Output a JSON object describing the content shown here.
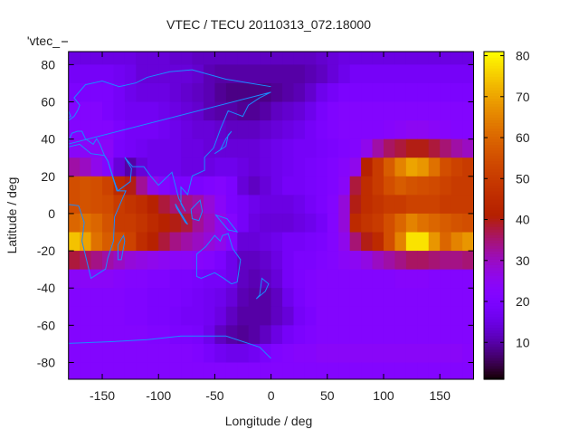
{
  "chart_data": {
    "type": "heatmap",
    "title": "VTEC / TECU 20110313_072.18000",
    "xlabel": "Longitude / deg",
    "ylabel": "Latitude / deg",
    "legend_entry": "'vtec_",
    "legend_placement": "top-left",
    "xlim": [
      -180,
      180
    ],
    "ylim": [
      -89,
      87
    ],
    "xticks": [
      -150,
      -100,
      -50,
      0,
      50,
      100,
      150
    ],
    "yticks": [
      -80,
      -60,
      -40,
      -20,
      0,
      20,
      40,
      60,
      80
    ],
    "colorbar": {
      "range": [
        1,
        81
      ],
      "ticks": [
        10,
        20,
        30,
        40,
        50,
        60,
        70,
        80
      ],
      "palette": "black-purple-red-orange-yellow"
    },
    "grid_lon_centers": [
      -175,
      -165,
      -155,
      -145,
      -135,
      -125,
      -115,
      -105,
      -95,
      -85,
      -75,
      -65,
      -55,
      -45,
      -35,
      -25,
      -15,
      -5,
      5,
      15,
      25,
      35,
      45,
      55,
      65,
      75,
      85,
      95,
      105,
      115,
      125,
      135,
      145,
      155,
      165,
      175
    ],
    "grid_lat_centers": [
      85,
      75,
      65,
      55,
      45,
      35,
      25,
      15,
      5,
      -5,
      -15,
      -25,
      -35,
      -45,
      -55,
      -65,
      -75,
      -85
    ],
    "values": [
      [
        15,
        15,
        15,
        15,
        15,
        15,
        14,
        14,
        14,
        13,
        13,
        12,
        12,
        12,
        12,
        12,
        12,
        12,
        12,
        12,
        12,
        12,
        13,
        14,
        15,
        15,
        15,
        15,
        15,
        15,
        15,
        15,
        15,
        15,
        15,
        15
      ],
      [
        18,
        18,
        18,
        18,
        17,
        16,
        14,
        14,
        14,
        14,
        14,
        13,
        11,
        10,
        10,
        10,
        10,
        10,
        10,
        10,
        10,
        11,
        12,
        14,
        16,
        18,
        18,
        18,
        18,
        18,
        18,
        18,
        18,
        18,
        18,
        18
      ],
      [
        20,
        20,
        20,
        20,
        18,
        16,
        15,
        15,
        15,
        14,
        13,
        12,
        11,
        9,
        8,
        8,
        8,
        8,
        9,
        10,
        11,
        13,
        16,
        18,
        20,
        20,
        20,
        20,
        20,
        20,
        20,
        20,
        20,
        20,
        20,
        20
      ],
      [
        22,
        22,
        22,
        20,
        18,
        17,
        17,
        17,
        16,
        15,
        14,
        13,
        11,
        10,
        10,
        9,
        9,
        10,
        12,
        13,
        14,
        16,
        19,
        21,
        22,
        22,
        22,
        22,
        22,
        22,
        22,
        22,
        22,
        22,
        22,
        22
      ],
      [
        22,
        22,
        22,
        22,
        20,
        18,
        18,
        18,
        17,
        16,
        15,
        14,
        14,
        13,
        12,
        12,
        12,
        13,
        14,
        15,
        16,
        18,
        20,
        21,
        22,
        22,
        22,
        22,
        23,
        24,
        25,
        25,
        24,
        23,
        22,
        22
      ],
      [
        24,
        24,
        24,
        24,
        19,
        18,
        17,
        16,
        16,
        16,
        15,
        15,
        14,
        14,
        14,
        14,
        14,
        15,
        16,
        17,
        18,
        18,
        19,
        20,
        21,
        22,
        26,
        32,
        36,
        38,
        40,
        40,
        38,
        35,
        32,
        30
      ],
      [
        32,
        30,
        26,
        22,
        14,
        10,
        14,
        16,
        16,
        16,
        15,
        15,
        15,
        16,
        16,
        15,
        14,
        15,
        16,
        17,
        18,
        19,
        20,
        21,
        23,
        26,
        42,
        50,
        58,
        65,
        70,
        68,
        62,
        55,
        52,
        50
      ],
      [
        55,
        56,
        55,
        52,
        45,
        40,
        33,
        26,
        22,
        20,
        20,
        20,
        21,
        22,
        20,
        14,
        12,
        14,
        16,
        18,
        18,
        19,
        20,
        21,
        24,
        38,
        46,
        50,
        55,
        58,
        56,
        55,
        54,
        52,
        50,
        50
      ],
      [
        55,
        56,
        55,
        54,
        50,
        48,
        46,
        42,
        38,
        35,
        34,
        32,
        28,
        24,
        20,
        18,
        16,
        15,
        15,
        15,
        16,
        18,
        20,
        22,
        28,
        40,
        46,
        48,
        50,
        50,
        52,
        52,
        52,
        50,
        50,
        50
      ],
      [
        60,
        62,
        60,
        56,
        50,
        50,
        48,
        45,
        42,
        40,
        38,
        33,
        30,
        26,
        22,
        18,
        15,
        14,
        14,
        14,
        15,
        16,
        18,
        22,
        28,
        45,
        48,
        50,
        55,
        60,
        65,
        62,
        60,
        58,
        56,
        55
      ],
      [
        74,
        70,
        62,
        58,
        55,
        52,
        46,
        42,
        38,
        34,
        32,
        30,
        28,
        26,
        22,
        14,
        14,
        15,
        16,
        18,
        18,
        19,
        20,
        22,
        26,
        35,
        40,
        45,
        55,
        65,
        78,
        78,
        68,
        60,
        65,
        68
      ],
      [
        38,
        36,
        34,
        32,
        30,
        28,
        27,
        26,
        25,
        24,
        24,
        23,
        22,
        20,
        16,
        12,
        12,
        13,
        15,
        18,
        20,
        20,
        21,
        22,
        24,
        25,
        27,
        30,
        32,
        34,
        36,
        36,
        35,
        34,
        34,
        35
      ],
      [
        24,
        24,
        24,
        24,
        23,
        22,
        22,
        21,
        21,
        20,
        20,
        19,
        18,
        18,
        16,
        12,
        11,
        12,
        14,
        18,
        20,
        21,
        22,
        22,
        22,
        22,
        22,
        22,
        22,
        23,
        23,
        23,
        22,
        22,
        22,
        22
      ],
      [
        22,
        22,
        22,
        22,
        22,
        21,
        21,
        20,
        20,
        20,
        19,
        18,
        17,
        16,
        14,
        11,
        10,
        10,
        12,
        16,
        19,
        21,
        22,
        22,
        22,
        22,
        22,
        22,
        22,
        22,
        22,
        22,
        22,
        22,
        22,
        22
      ],
      [
        22,
        22,
        22,
        22,
        22,
        21,
        21,
        20,
        20,
        19,
        18,
        18,
        17,
        15,
        12,
        10,
        10,
        10,
        12,
        14,
        18,
        20,
        22,
        22,
        22,
        22,
        22,
        22,
        22,
        22,
        22,
        22,
        22,
        22,
        22,
        22
      ],
      [
        22,
        22,
        22,
        22,
        22,
        22,
        22,
        21,
        21,
        20,
        20,
        19,
        16,
        12,
        10,
        9,
        10,
        12,
        15,
        18,
        20,
        21,
        22,
        22,
        22,
        22,
        22,
        22,
        22,
        22,
        22,
        22,
        22,
        22,
        22,
        22
      ],
      [
        22,
        22,
        22,
        22,
        22,
        22,
        22,
        22,
        22,
        22,
        22,
        21,
        19,
        17,
        16,
        16,
        17,
        19,
        21,
        22,
        23,
        23,
        24,
        24,
        24,
        24,
        24,
        24,
        24,
        24,
        24,
        24,
        24,
        24,
        24,
        23
      ],
      [
        22,
        22,
        22,
        22,
        22,
        22,
        22,
        22,
        22,
        22,
        22,
        22,
        22,
        22,
        22,
        22,
        22,
        22,
        22,
        22,
        22,
        22,
        22,
        22,
        22,
        22,
        22,
        22,
        22,
        22,
        22,
        22,
        22,
        22,
        22,
        22
      ]
    ],
    "coastline_color": "#1a8cff"
  }
}
